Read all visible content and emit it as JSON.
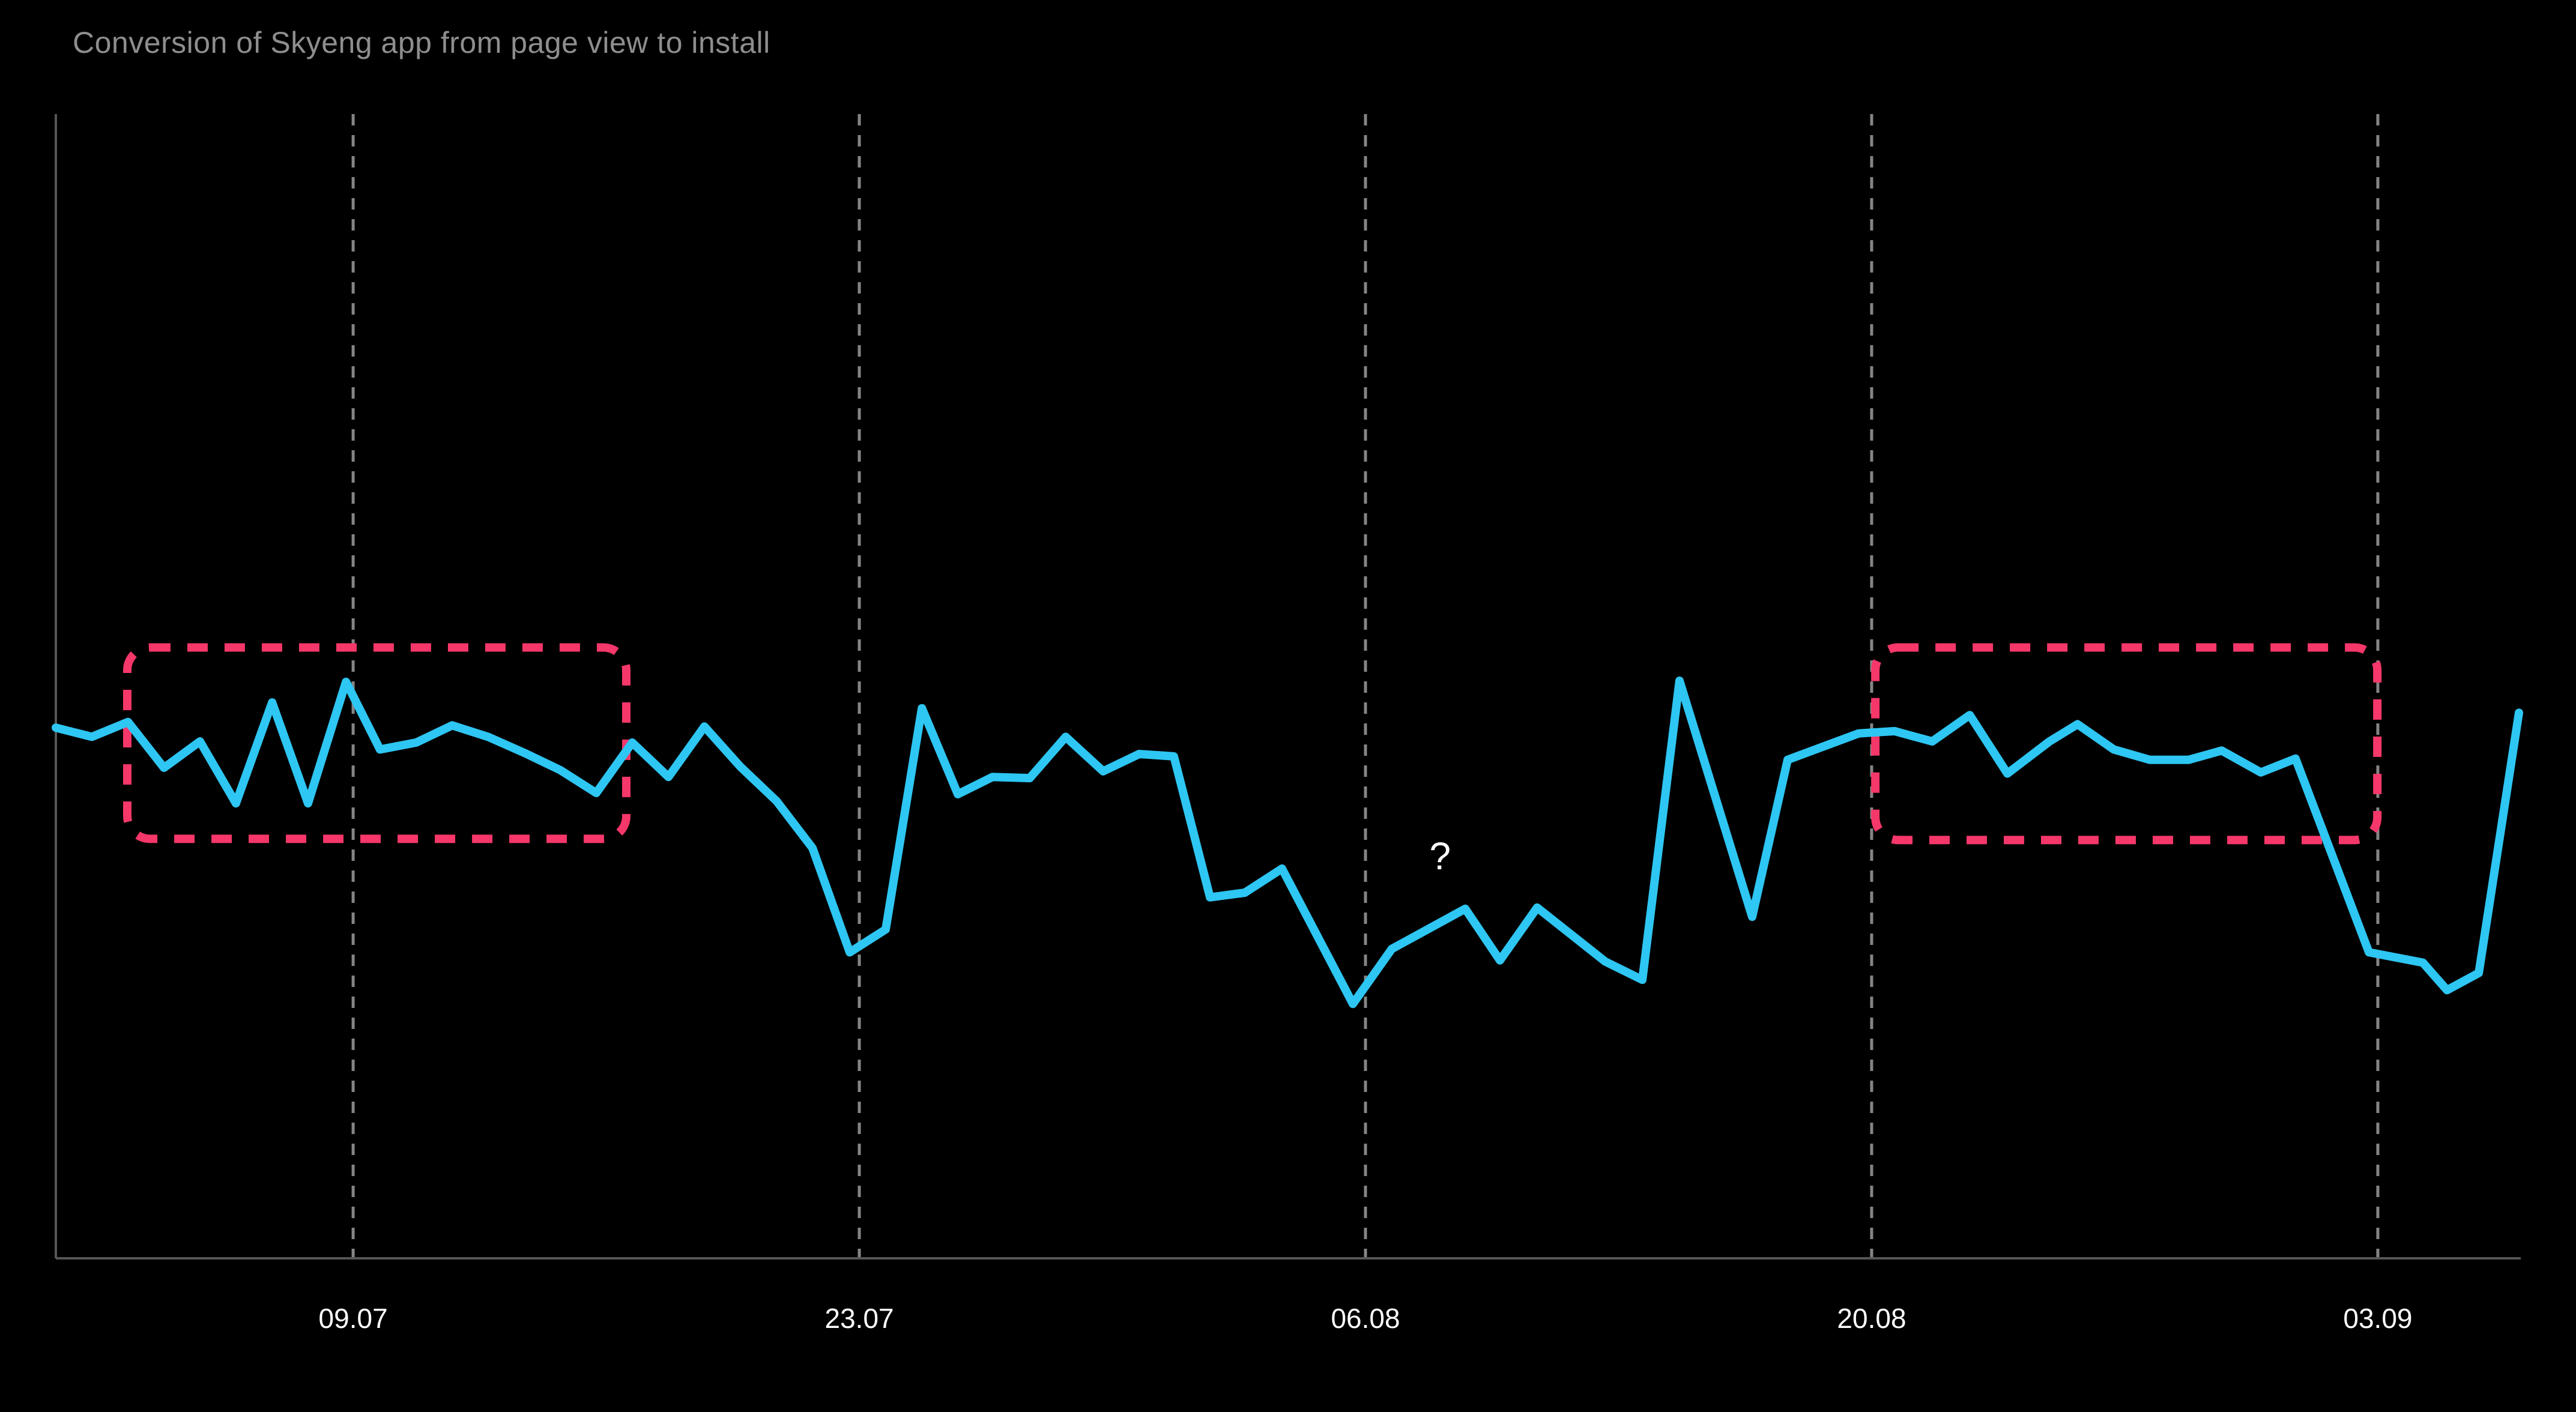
{
  "title": "Conversion of Skyeng app from page view to install",
  "colors": {
    "background": "#000000",
    "title": "#8e8e8e",
    "line": "#2ec6f2",
    "axis": "#565656",
    "gridline": "#858585",
    "tick_label": "#ffffff",
    "highlight_box": "#f5376a",
    "annotation": "#ffffff"
  },
  "chart_data": {
    "type": "line",
    "title": "Conversion of Skyeng app from page view to install",
    "xlabel": "",
    "ylabel": "",
    "ylim": [
      0,
      100
    ],
    "grid": "vertical-dashed-datelines-only",
    "legend_position": "none",
    "x_axis_note_visible_ticks_only": [
      "09.07",
      "23.07",
      "06.08",
      "20.08",
      "03.09"
    ],
    "x_ticks": [
      {
        "label": "09.07",
        "pos": 0.1207
      },
      {
        "label": "23.07",
        "pos": 0.3262
      },
      {
        "label": "06.08",
        "pos": 0.5317
      },
      {
        "label": "20.08",
        "pos": 0.7372
      },
      {
        "label": "03.09",
        "pos": 0.9427
      }
    ],
    "series": [
      {
        "name": "conversion",
        "color": "#2ec6f2",
        "points": [
          [
            0.0,
            46.3
          ],
          [
            0.0146,
            45.5
          ],
          [
            0.0293,
            46.8
          ],
          [
            0.0439,
            42.8
          ],
          [
            0.0585,
            45.1
          ],
          [
            0.0731,
            39.7
          ],
          [
            0.0878,
            48.5
          ],
          [
            0.1024,
            39.7
          ],
          [
            0.1178,
            50.3
          ],
          [
            0.1316,
            44.4
          ],
          [
            0.1463,
            45.0
          ],
          [
            0.1609,
            46.5
          ],
          [
            0.1755,
            45.5
          ],
          [
            0.1902,
            44.1
          ],
          [
            0.2048,
            42.6
          ],
          [
            0.2194,
            40.6
          ],
          [
            0.234,
            45.0
          ],
          [
            0.2487,
            42.0
          ],
          [
            0.2633,
            46.4
          ],
          [
            0.2779,
            42.9
          ],
          [
            0.2926,
            39.9
          ],
          [
            0.3072,
            35.8
          ],
          [
            0.3223,
            26.7
          ],
          [
            0.3369,
            28.7
          ],
          [
            0.3516,
            48.0
          ],
          [
            0.3662,
            40.5
          ],
          [
            0.3803,
            42.0
          ],
          [
            0.3954,
            41.9
          ],
          [
            0.41,
            45.5
          ],
          [
            0.4252,
            42.5
          ],
          [
            0.4398,
            44.0
          ],
          [
            0.4539,
            43.8
          ],
          [
            0.4686,
            31.5
          ],
          [
            0.4827,
            31.9
          ],
          [
            0.4978,
            34.0
          ],
          [
            0.5266,
            22.2
          ],
          [
            0.5424,
            27.0
          ],
          [
            0.5722,
            30.5
          ],
          [
            0.5863,
            26.0
          ],
          [
            0.6014,
            30.6
          ],
          [
            0.629,
            25.9
          ],
          [
            0.6441,
            24.3
          ],
          [
            0.6592,
            50.4
          ],
          [
            0.6887,
            29.8
          ],
          [
            0.7031,
            43.5
          ],
          [
            0.7319,
            45.8
          ],
          [
            0.7465,
            46.0
          ],
          [
            0.7618,
            45.1
          ],
          [
            0.777,
            47.4
          ],
          [
            0.7923,
            42.3
          ],
          [
            0.8094,
            45.1
          ],
          [
            0.8208,
            46.6
          ],
          [
            0.8355,
            44.4
          ],
          [
            0.8501,
            43.5
          ],
          [
            0.8659,
            43.5
          ],
          [
            0.8793,
            44.3
          ],
          [
            0.8952,
            42.4
          ],
          [
            0.9093,
            43.6
          ],
          [
            0.9391,
            26.7
          ],
          [
            0.961,
            25.8
          ],
          [
            0.9708,
            23.4
          ],
          [
            0.9837,
            24.9
          ],
          [
            1.0,
            47.6
          ]
        ]
      }
    ],
    "highlight_boxes": [
      {
        "x0": 0.029,
        "x1": 0.2316,
        "v0": 36.6,
        "v1": 53.3
      },
      {
        "x0": 0.7387,
        "x1": 0.9425,
        "v0": 36.5,
        "v1": 53.3
      }
    ],
    "annotations": [
      {
        "text": "?",
        "x": 0.562,
        "v": 35.2
      }
    ]
  }
}
